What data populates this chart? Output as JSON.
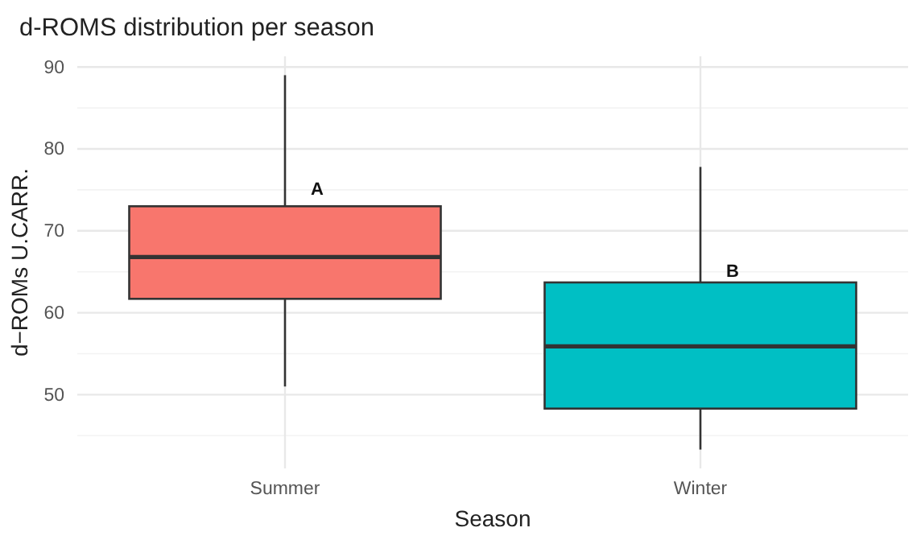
{
  "chart_data": {
    "type": "box",
    "title": "d-ROMS distribution per season",
    "xlabel": "Season",
    "ylabel": "d−ROMs U.CARR.",
    "categories": [
      "Summer",
      "Winter"
    ],
    "colors": [
      "#f8766d",
      "#00bfc4"
    ],
    "boxes": [
      {
        "low": 51,
        "q1": 61.7,
        "median": 66.8,
        "q3": 73,
        "high": 89
      },
      {
        "low": 43.3,
        "q1": 48.3,
        "median": 55.9,
        "q3": 63.7,
        "high": 77.8
      }
    ],
    "ylim": [
      41,
      91.3
    ],
    "yticks": [
      {
        "value": 45,
        "label": null
      },
      50,
      {
        "value": 55,
        "label": null
      },
      60,
      {
        "value": 65,
        "label": null
      },
      70,
      {
        "value": 75,
        "label": null
      },
      80,
      {
        "value": 85,
        "label": null
      },
      90
    ],
    "grid": true,
    "annotations": [
      {
        "text": "A",
        "x": "Summer",
        "y": 75
      },
      {
        "text": "B",
        "x": "Winter",
        "y": 65
      }
    ]
  }
}
